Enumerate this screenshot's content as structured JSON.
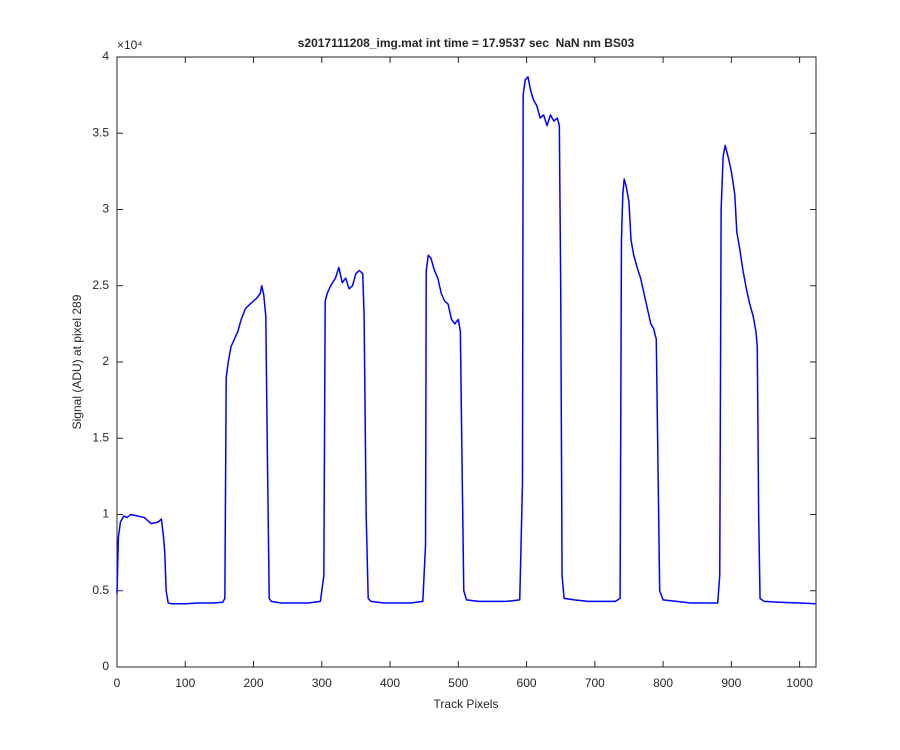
{
  "chart_data": {
    "type": "line",
    "title": "s2017111208_img.mat int time = 17.9537 sec  NaN nm BS03",
    "x_label": "Track Pixels",
    "y_label": "Signal (ADU) at pixel 289",
    "y_exponent_label": "×10⁴",
    "xlim": [
      0,
      1024
    ],
    "xticks": [
      0,
      100,
      200,
      300,
      400,
      500,
      600,
      700,
      800,
      900,
      1000
    ],
    "ylim": [
      0,
      4
    ],
    "yticks": [
      0,
      0.5,
      1,
      1.5,
      2,
      2.5,
      3,
      3.5,
      4
    ],
    "x": [
      0,
      2,
      5,
      10,
      15,
      20,
      30,
      40,
      50,
      60,
      65,
      68,
      70,
      72,
      75,
      80,
      100,
      120,
      140,
      155,
      158,
      160,
      163,
      167,
      172,
      177,
      182,
      188,
      195,
      200,
      205,
      210,
      212,
      215,
      218,
      220,
      223,
      226,
      240,
      260,
      280,
      298,
      303,
      305,
      308,
      313,
      320,
      325,
      330,
      335,
      340,
      345,
      350,
      355,
      360,
      362,
      365,
      368,
      372,
      390,
      410,
      430,
      448,
      452,
      453,
      456,
      460,
      465,
      470,
      475,
      480,
      485,
      490,
      495,
      500,
      503,
      505,
      508,
      512,
      530,
      550,
      570,
      590,
      594,
      595,
      598,
      602,
      606,
      610,
      615,
      620,
      625,
      630,
      635,
      640,
      645,
      648,
      650,
      652,
      655,
      670,
      690,
      710,
      730,
      737,
      739,
      741,
      743,
      746,
      750,
      753,
      757,
      762,
      767,
      772,
      777,
      782,
      786,
      790,
      792,
      795,
      800,
      820,
      840,
      860,
      880,
      883,
      885,
      888,
      891,
      895,
      900,
      905,
      908,
      912,
      917,
      922,
      927,
      932,
      936,
      938,
      940,
      942,
      948,
      970,
      1000,
      1024
    ],
    "series": [
      {
        "name": "Signal",
        "color": "#0000ff",
        "values": [
          0.48,
          0.85,
          0.95,
          0.99,
          0.98,
          1.0,
          0.99,
          0.98,
          0.94,
          0.95,
          0.97,
          0.86,
          0.75,
          0.5,
          0.42,
          0.415,
          0.415,
          0.42,
          0.42,
          0.425,
          0.45,
          1.9,
          2.0,
          2.1,
          2.15,
          2.2,
          2.28,
          2.35,
          2.38,
          2.4,
          2.42,
          2.45,
          2.5,
          2.44,
          2.3,
          1.5,
          0.45,
          0.43,
          0.42,
          0.42,
          0.42,
          0.43,
          0.6,
          2.4,
          2.45,
          2.5,
          2.55,
          2.62,
          2.52,
          2.55,
          2.48,
          2.5,
          2.58,
          2.6,
          2.58,
          2.3,
          1.0,
          0.45,
          0.43,
          0.42,
          0.42,
          0.42,
          0.43,
          0.8,
          2.6,
          2.7,
          2.68,
          2.6,
          2.55,
          2.45,
          2.4,
          2.38,
          2.28,
          2.25,
          2.28,
          2.2,
          1.5,
          0.5,
          0.44,
          0.43,
          0.43,
          0.43,
          0.44,
          1.2,
          3.75,
          3.85,
          3.87,
          3.78,
          3.72,
          3.68,
          3.6,
          3.62,
          3.55,
          3.62,
          3.58,
          3.6,
          3.55,
          2.5,
          0.6,
          0.45,
          0.44,
          0.43,
          0.43,
          0.43,
          0.45,
          2.8,
          3.1,
          3.2,
          3.15,
          3.05,
          2.8,
          2.7,
          2.62,
          2.55,
          2.45,
          2.35,
          2.25,
          2.22,
          2.15,
          1.5,
          0.5,
          0.44,
          0.43,
          0.42,
          0.42,
          0.42,
          0.6,
          3.0,
          3.35,
          3.42,
          3.35,
          3.25,
          3.1,
          2.85,
          2.75,
          2.6,
          2.48,
          2.38,
          2.3,
          2.2,
          2.1,
          1.0,
          0.45,
          0.43,
          0.425,
          0.42,
          0.415
        ]
      }
    ]
  }
}
